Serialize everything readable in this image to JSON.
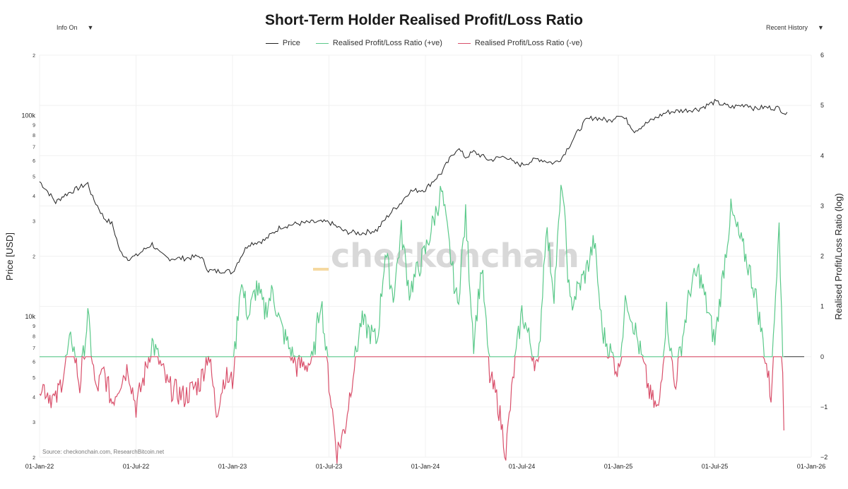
{
  "controls": {
    "info_label": "Info On",
    "history_label": "Recent History"
  },
  "chart_data": {
    "type": "line",
    "title": "Short-Term Holder Realised Profit/Loss Ratio",
    "ylabel_left": "Price [USD]",
    "ylabel_right": "Realised Profit/Loss Ratio (log)",
    "source": "Source: checkonchain.com, ResearchBitcoin.net",
    "watermark": "checkonchain",
    "legend": [
      {
        "name": "Price",
        "color": "#222222"
      },
      {
        "name": "Realised Profit/Loss Ratio (+ve)",
        "color": "#5bc98a"
      },
      {
        "name": "Realised Profit/Loss Ratio (-ve)",
        "color": "#d9506b"
      }
    ],
    "x_ticks": [
      "01-Jan-22",
      "01-Jul-22",
      "01-Jan-23",
      "01-Jul-23",
      "01-Jan-24",
      "01-Jul-24",
      "01-Jan-25",
      "01-Jul-25",
      "01-Jan-26"
    ],
    "x_range_months": [
      0,
      48
    ],
    "left_axis": {
      "scale": "log",
      "range": [
        2000,
        200000
      ],
      "major_ticks": [
        {
          "value": 10000,
          "label": "10k"
        },
        {
          "value": 100000,
          "label": "100k"
        }
      ],
      "minor_ticks": [
        {
          "value": 2000,
          "label": "2"
        },
        {
          "value": 3000,
          "label": "3"
        },
        {
          "value": 4000,
          "label": "4"
        },
        {
          "value": 5000,
          "label": "5"
        },
        {
          "value": 6000,
          "label": "6"
        },
        {
          "value": 7000,
          "label": "7"
        },
        {
          "value": 8000,
          "label": "8"
        },
        {
          "value": 9000,
          "label": "9"
        },
        {
          "value": 20000,
          "label": "2"
        },
        {
          "value": 30000,
          "label": "3"
        },
        {
          "value": 40000,
          "label": "4"
        },
        {
          "value": 50000,
          "label": "5"
        },
        {
          "value": 60000,
          "label": "6"
        },
        {
          "value": 70000,
          "label": "7"
        },
        {
          "value": 80000,
          "label": "8"
        },
        {
          "value": 90000,
          "label": "9"
        },
        {
          "value": 200000,
          "label": "2"
        }
      ]
    },
    "right_axis": {
      "range": [
        -2,
        6
      ],
      "ticks": [
        {
          "value": -2,
          "label": "−2"
        },
        {
          "value": -1,
          "label": "−1"
        },
        {
          "value": 0,
          "label": "0"
        },
        {
          "value": 1,
          "label": "1"
        },
        {
          "value": 2,
          "label": "2"
        },
        {
          "value": 3,
          "label": "3"
        },
        {
          "value": 4,
          "label": "4"
        },
        {
          "value": 5,
          "label": "5"
        },
        {
          "value": 6,
          "label": "6"
        }
      ]
    },
    "price_series": {
      "name": "Price",
      "months": [
        0,
        0.5,
        1,
        1.5,
        2,
        3,
        3.3,
        4,
        4.5,
        5,
        5.5,
        6,
        7,
        7.5,
        8,
        9,
        10,
        10.5,
        11,
        11.5,
        12,
        13,
        14,
        15,
        16,
        17,
        18,
        19,
        20,
        21,
        22,
        22.5,
        23,
        24,
        25,
        26,
        26.5,
        27,
        28,
        29,
        29.5,
        30,
        31,
        32,
        32.5,
        33,
        34,
        34.5,
        35,
        35.5,
        36,
        36.5,
        37,
        38,
        39,
        40,
        41,
        42,
        43,
        44,
        44.5,
        45,
        46,
        46.5
      ],
      "values": [
        47000,
        42000,
        37000,
        40000,
        42000,
        46000,
        39000,
        31000,
        29000,
        21000,
        19500,
        20000,
        23000,
        20500,
        19500,
        19500,
        20000,
        17000,
        16800,
        17000,
        16600,
        23000,
        24000,
        28000,
        29000,
        29500,
        29500,
        26500,
        26000,
        27000,
        34000,
        37000,
        42000,
        43000,
        52000,
        69000,
        62000,
        66000,
        60000,
        63000,
        58000,
        57000,
        61000,
        58000,
        62000,
        72000,
        95000,
        98000,
        96000,
        94000,
        102000,
        95000,
        84000,
        94000,
        104000,
        106000,
        108000,
        117000,
        110000,
        114000,
        108000,
        110000,
        109000,
        101000
      ]
    },
    "ratio_series": {
      "name": "Realised Profit/Loss Ratio",
      "months": [
        0,
        1,
        1.5,
        2,
        2.5,
        3,
        3.5,
        4,
        4.5,
        5,
        5.5,
        6,
        6.5,
        7,
        8,
        9,
        10,
        10.5,
        11,
        11.5,
        12,
        12.5,
        13,
        13.5,
        14,
        14.5,
        15,
        16,
        17,
        17.5,
        18,
        18.5,
        19,
        19.5,
        20,
        21,
        21.5,
        22,
        22.5,
        23,
        24,
        25,
        26,
        26.5,
        27,
        27.5,
        28,
        28.5,
        29,
        29.5,
        30,
        31,
        31.5,
        32,
        32.5,
        33,
        34,
        34.5,
        35,
        36,
        36.5,
        37,
        38,
        38.5,
        39,
        39.5,
        40,
        40.5,
        41,
        42,
        43,
        44,
        44.5,
        45,
        45.5,
        46,
        46.3
      ],
      "values": [
        -0.5,
        -0.9,
        -0.3,
        0.4,
        -0.6,
        0.8,
        -0.7,
        -0.3,
        -0.9,
        -0.5,
        -0.2,
        -1.0,
        -0.4,
        0.3,
        -0.6,
        -0.8,
        -0.5,
        0.1,
        -1.1,
        -0.4,
        -0.5,
        1.5,
        0.8,
        1.4,
        0.9,
        1.3,
        0.6,
        -0.2,
        -0.1,
        1.2,
        -0.5,
        -1.9,
        -1.4,
        -0.3,
        0.7,
        0.3,
        2.1,
        1.2,
        2.5,
        1.3,
        2.1,
        3.3,
        1.0,
        2.8,
        0.3,
        1.8,
        -0.4,
        -0.9,
        -1.9,
        -0.3,
        0.9,
        -0.3,
        2.6,
        1.3,
        3.5,
        1.0,
        1.7,
        2.3,
        0.5,
        -0.3,
        1.2,
        0.6,
        -0.8,
        -1.1,
        0.9,
        -0.6,
        0.4,
        1.4,
        1.7,
        0.3,
        2.9,
        1.9,
        1.3,
        0.3,
        -0.8,
        2.9,
        -1.4
      ]
    },
    "ratio_zero_extension_months": [
      46.3,
      48
    ]
  }
}
